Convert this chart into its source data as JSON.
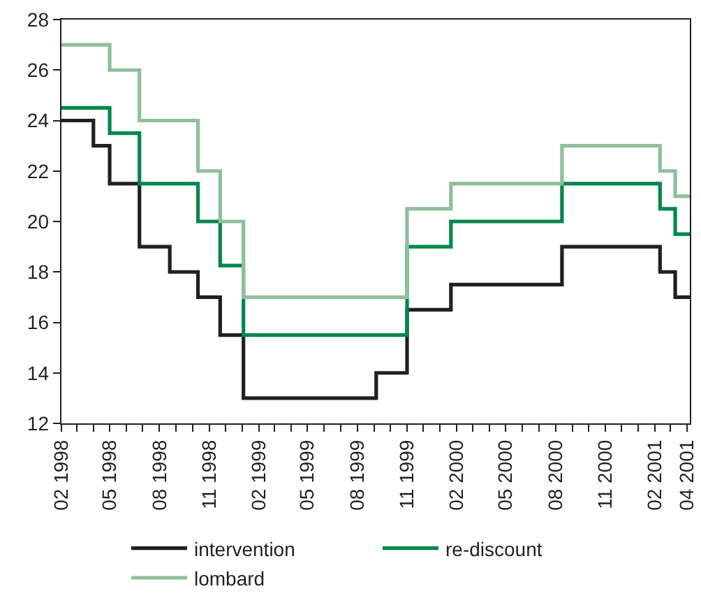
{
  "chart_data": {
    "type": "step",
    "x": [
      "1998-02-01",
      "1998-04-01",
      "1998-05-01",
      "1998-06-25",
      "1998-08-20",
      "1998-10-11",
      "1998-11-21",
      "1999-01-03",
      "1999-09-05",
      "1999-11-01",
      "2000-01-21",
      "2000-08-13",
      "2001-02-10",
      "2001-03-10",
      "2001-04-06"
    ],
    "series": [
      {
        "name": "intervention",
        "color": "#231f20",
        "values": [
          24,
          23,
          21.5,
          19,
          18,
          17,
          15.5,
          13,
          14,
          16.5,
          17.5,
          19,
          18,
          17,
          17
        ]
      },
      {
        "name": "re-discount",
        "color": "#00874a",
        "values": [
          24.5,
          24.5,
          23.5,
          21.5,
          21.5,
          20,
          18.25,
          15.5,
          15.5,
          19,
          20,
          21.5,
          20.5,
          19.5,
          19.5
        ]
      },
      {
        "name": "lombard",
        "color": "#8fbf9a",
        "values": [
          27,
          27,
          26,
          24,
          24,
          22,
          20,
          17,
          17,
          20.5,
          21.5,
          23,
          22,
          21,
          21
        ]
      }
    ],
    "xlim": [
      "1998-02-01",
      "2001-04-06"
    ],
    "xticks": [
      {
        "value": "1998-02-01",
        "label": "02 1998"
      },
      {
        "value": "1998-03-01",
        "label": null
      },
      {
        "value": "1998-04-01",
        "label": null
      },
      {
        "value": "1998-05-01",
        "label": "05 1998"
      },
      {
        "value": "1998-06-01",
        "label": null
      },
      {
        "value": "1998-07-01",
        "label": null
      },
      {
        "value": "1998-08-01",
        "label": "08 1998"
      },
      {
        "value": "1998-09-01",
        "label": null
      },
      {
        "value": "1998-10-01",
        "label": null
      },
      {
        "value": "1998-11-01",
        "label": "11 1998"
      },
      {
        "value": "1998-12-01",
        "label": null
      },
      {
        "value": "1999-01-01",
        "label": null
      },
      {
        "value": "1999-02-01",
        "label": "02 1999"
      },
      {
        "value": "1999-03-01",
        "label": null
      },
      {
        "value": "1999-04-01",
        "label": null
      },
      {
        "value": "1999-05-01",
        "label": "05 1999"
      },
      {
        "value": "1999-06-01",
        "label": null
      },
      {
        "value": "1999-07-01",
        "label": null
      },
      {
        "value": "1999-08-01",
        "label": "08 1999"
      },
      {
        "value": "1999-09-01",
        "label": null
      },
      {
        "value": "1999-10-01",
        "label": null
      },
      {
        "value": "1999-11-01",
        "label": "11 1999"
      },
      {
        "value": "1999-12-01",
        "label": null
      },
      {
        "value": "2000-01-01",
        "label": null
      },
      {
        "value": "2000-02-01",
        "label": "02 2000"
      },
      {
        "value": "2000-03-01",
        "label": null
      },
      {
        "value": "2000-04-01",
        "label": null
      },
      {
        "value": "2000-05-01",
        "label": "05 2000"
      },
      {
        "value": "2000-06-01",
        "label": null
      },
      {
        "value": "2000-07-01",
        "label": null
      },
      {
        "value": "2000-08-01",
        "label": "08 2000"
      },
      {
        "value": "2000-09-01",
        "label": null
      },
      {
        "value": "2000-10-01",
        "label": null
      },
      {
        "value": "2000-11-01",
        "label": "11 2000"
      },
      {
        "value": "2000-12-01",
        "label": null
      },
      {
        "value": "2001-01-01",
        "label": null
      },
      {
        "value": "2001-02-01",
        "label": "02 2001"
      },
      {
        "value": "2001-03-01",
        "label": null
      },
      {
        "value": "2001-04-01",
        "label": "04 2001"
      }
    ],
    "ylim": [
      12,
      28
    ],
    "yticks": [
      12,
      14,
      16,
      18,
      20,
      22,
      24,
      26,
      28
    ],
    "grid": false,
    "legend": "bottom"
  }
}
